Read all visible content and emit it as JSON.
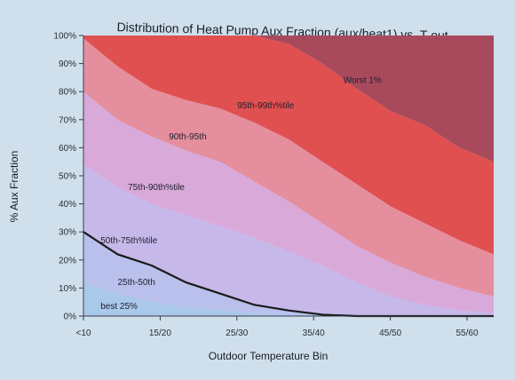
{
  "chart_data": {
    "type": "area",
    "title": "Distribution of Heat Pump Aux Fraction (aux/heat1) vs. T-out",
    "xlabel": "Outdoor Temperature Bin",
    "ylabel": "% Aux Fraction",
    "categories": [
      "<10",
      "15/20",
      "25/30",
      "35/40",
      "45/50",
      "55/60"
    ],
    "yticks": [
      "0%",
      "10%",
      "20%",
      "30%",
      "40%",
      "50%",
      "60%",
      "70%",
      "80%",
      "90%",
      "100%"
    ],
    "ylim": [
      0,
      100
    ],
    "grid": false,
    "x": [
      0,
      1,
      2,
      3,
      4,
      5,
      6,
      7,
      8,
      9,
      10,
      11,
      12
    ],
    "boundaries": [
      {
        "name": "p25",
        "values": [
          12,
          8,
          5,
          3,
          2,
          1,
          0.5,
          0.3,
          0.2,
          0.1,
          0.1,
          0,
          0
        ]
      },
      {
        "name": "p50",
        "values": [
          30,
          22,
          18,
          12,
          8,
          4,
          2,
          0.5,
          0,
          0,
          0,
          0,
          0
        ]
      },
      {
        "name": "p75",
        "values": [
          54,
          46,
          40,
          36,
          32,
          28,
          23,
          18,
          12,
          7,
          4,
          2,
          1
        ]
      },
      {
        "name": "p90",
        "values": [
          80,
          70,
          64,
          59,
          55,
          48,
          41,
          33,
          25,
          19,
          14,
          10,
          7
        ]
      },
      {
        "name": "p95",
        "values": [
          99,
          89,
          81,
          77,
          74,
          69,
          63,
          55,
          47,
          39,
          33,
          27,
          22
        ]
      },
      {
        "name": "p99",
        "values": [
          100,
          100,
          100,
          100,
          100,
          100,
          97,
          90,
          81,
          73,
          68,
          60,
          55
        ]
      },
      {
        "name": "max",
        "values": [
          100,
          100,
          100,
          100,
          100,
          100,
          100,
          100,
          100,
          100,
          100,
          100,
          100
        ]
      }
    ],
    "bands": [
      {
        "from": null,
        "to": "p25",
        "name": "best 25%",
        "color": "#a9c8ea"
      },
      {
        "from": "p25",
        "to": "p50",
        "name": "25th-50th",
        "color": "#b9c0ec"
      },
      {
        "from": "p50",
        "to": "p75",
        "name": "50th-75th%tile",
        "color": "#c7b8ea"
      },
      {
        "from": "p75",
        "to": "p90",
        "name": "75th-90th%tile",
        "color": "#d9a9d9"
      },
      {
        "from": "p90",
        "to": "p95",
        "name": "90th-95th",
        "color": "#e58e9e"
      },
      {
        "from": "p95",
        "to": "p99",
        "name": "95th-99th%tile",
        "color": "#e05050"
      },
      {
        "from": "p99",
        "to": "max",
        "name": "Worst 1%",
        "color": "#a94a5c"
      }
    ],
    "highlight_line": {
      "boundary": "p50",
      "color": "#1a1a1a"
    },
    "labels": [
      {
        "text": "best 25%",
        "x": 0.5,
        "y": 2.5
      },
      {
        "text": "25th-50th",
        "x": 1.0,
        "y": 11
      },
      {
        "text": "50th-75th%tile",
        "x": 0.5,
        "y": 26
      },
      {
        "text": "75th-90th%tile",
        "x": 1.3,
        "y": 45
      },
      {
        "text": "90th-95th",
        "x": 2.5,
        "y": 63
      },
      {
        "text": "95th-99th%tile",
        "x": 4.5,
        "y": 74
      },
      {
        "text": "Worst 1%",
        "x": 7.6,
        "y": 83
      }
    ]
  }
}
